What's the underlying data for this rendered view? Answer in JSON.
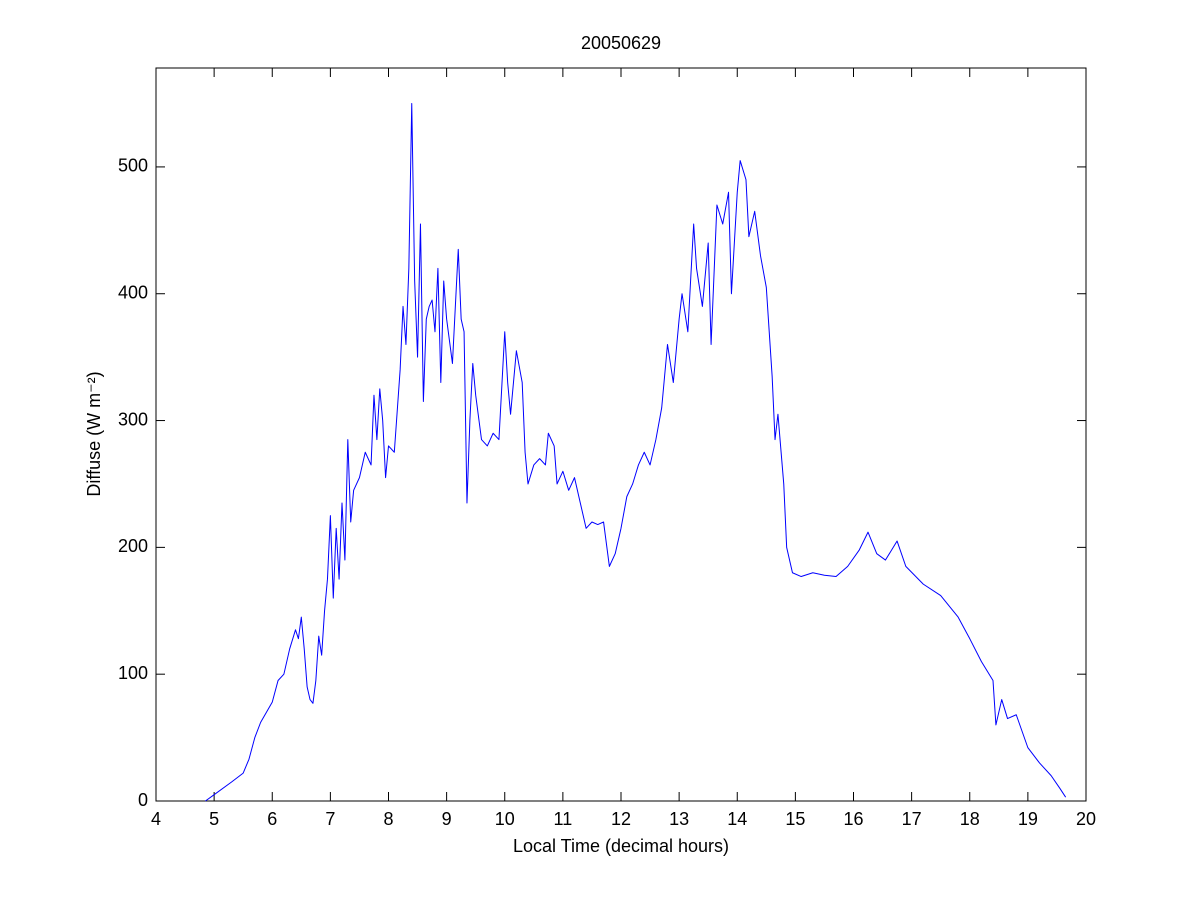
{
  "chart_data": {
    "type": "line",
    "title": "20050629",
    "x_label": "Local Time (decimal hours)",
    "y_label": "Diffuse (W m⁻²)",
    "xlim": [
      4,
      20
    ],
    "ylim": [
      0,
      578
    ],
    "xticks": [
      4,
      5,
      6,
      7,
      8,
      9,
      10,
      11,
      12,
      13,
      14,
      15,
      16,
      17,
      18,
      19,
      20
    ],
    "yticks": [
      0,
      100,
      200,
      300,
      400,
      500
    ],
    "grid": false,
    "series": [
      {
        "color": "#0000ff",
        "x": [
          4.85,
          5.0,
          5.3,
          5.5,
          5.6,
          5.7,
          5.8,
          5.9,
          6.0,
          6.1,
          6.2,
          6.3,
          6.4,
          6.45,
          6.5,
          6.55,
          6.6,
          6.65,
          6.7,
          6.75,
          6.8,
          6.85,
          6.9,
          6.95,
          7.0,
          7.05,
          7.1,
          7.15,
          7.2,
          7.25,
          7.3,
          7.35,
          7.4,
          7.5,
          7.6,
          7.7,
          7.75,
          7.8,
          7.85,
          7.9,
          7.95,
          8.0,
          8.1,
          8.2,
          8.25,
          8.3,
          8.35,
          8.4,
          8.45,
          8.5,
          8.55,
          8.6,
          8.65,
          8.7,
          8.75,
          8.8,
          8.85,
          8.9,
          8.95,
          9.0,
          9.1,
          9.2,
          9.25,
          9.3,
          9.35,
          9.4,
          9.45,
          9.5,
          9.6,
          9.7,
          9.8,
          9.9,
          10.0,
          10.05,
          10.1,
          10.2,
          10.3,
          10.35,
          10.4,
          10.5,
          10.6,
          10.7,
          10.75,
          10.85,
          10.9,
          11.0,
          11.1,
          11.2,
          11.3,
          11.4,
          11.5,
          11.6,
          11.7,
          11.8,
          11.9,
          12.0,
          12.1,
          12.2,
          12.3,
          12.4,
          12.5,
          12.6,
          12.7,
          12.8,
          12.9,
          13.0,
          13.05,
          13.15,
          13.25,
          13.3,
          13.4,
          13.5,
          13.55,
          13.65,
          13.75,
          13.85,
          13.9,
          14.0,
          14.05,
          14.15,
          14.2,
          14.3,
          14.4,
          14.5,
          14.55,
          14.6,
          14.65,
          14.7,
          14.8,
          14.85,
          14.95,
          15.1,
          15.3,
          15.5,
          15.7,
          15.9,
          16.1,
          16.25,
          16.4,
          16.55,
          16.75,
          16.9,
          17.2,
          17.5,
          17.8,
          18.0,
          18.2,
          18.4,
          18.45,
          18.55,
          18.65,
          18.8,
          18.9,
          19.0,
          19.2,
          19.4,
          19.55,
          19.65
        ],
        "values": [
          0,
          5,
          15,
          22,
          33,
          50,
          62,
          70,
          78,
          95,
          100,
          120,
          135,
          128,
          145,
          120,
          90,
          80,
          77,
          95,
          130,
          115,
          150,
          175,
          225,
          160,
          215,
          175,
          235,
          190,
          285,
          220,
          245,
          255,
          275,
          265,
          320,
          285,
          325,
          300,
          255,
          280,
          275,
          340,
          390,
          360,
          420,
          550,
          410,
          350,
          455,
          315,
          380,
          390,
          395,
          370,
          420,
          330,
          410,
          380,
          345,
          435,
          380,
          370,
          235,
          300,
          345,
          320,
          285,
          280,
          290,
          285,
          370,
          330,
          305,
          355,
          330,
          275,
          250,
          265,
          270,
          265,
          290,
          280,
          250,
          260,
          245,
          255,
          235,
          215,
          220,
          218,
          220,
          185,
          195,
          215,
          240,
          250,
          265,
          275,
          265,
          285,
          310,
          360,
          330,
          380,
          400,
          370,
          455,
          420,
          390,
          440,
          360,
          470,
          455,
          480,
          400,
          480,
          505,
          490,
          445,
          465,
          430,
          405,
          370,
          335,
          285,
          305,
          250,
          200,
          180,
          177,
          180,
          178,
          177,
          185,
          198,
          212,
          195,
          190,
          205,
          185,
          171,
          162,
          145,
          128,
          110,
          95,
          60,
          80,
          65,
          68,
          55,
          42,
          30,
          20,
          10,
          3
        ]
      }
    ]
  }
}
